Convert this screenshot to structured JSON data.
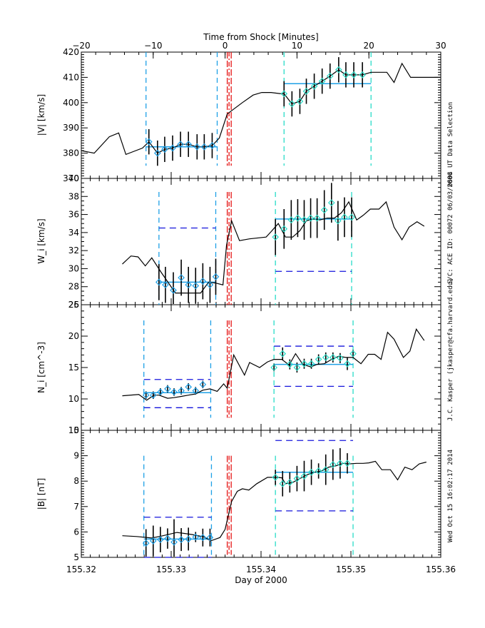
{
  "chart_data": {
    "type": "line",
    "top_axis": {
      "title": "Time from Shock [Minutes]",
      "range": [
        -20,
        30
      ],
      "ticks": [
        -20,
        -10,
        0,
        10,
        20,
        30
      ]
    },
    "bottom_axis": {
      "title": "Day of 2000",
      "range": [
        155.32,
        155.36
      ],
      "ticks": [
        "155.32",
        "155.33",
        "155.34",
        "155.35",
        "155.36"
      ]
    },
    "shock_time_min": 0,
    "side_notes": [
      "0604 UT Data Selection",
      "S/C: ACE ID: 00072 06/03/2000",
      "J.C. Kasper (jkasper@cfa.harvard.edu)",
      "Wed Oct 15 16:02:17 2014"
    ],
    "colors": {
      "line": "#000000",
      "upstream": "#1ea0e6",
      "downstream": "#28dcc8",
      "mean": "#1ea0e6",
      "limits": "#1414dc",
      "shock": "#e61414"
    },
    "panels": [
      {
        "name": "speed",
        "ylabel": "|V| [km/s]",
        "ylim": [
          370,
          420
        ],
        "yticks": [
          370,
          380,
          390,
          400,
          410,
          420
        ],
        "minor": 1,
        "series_min": [
          -20,
          -18.2,
          -16.1,
          -14.8,
          -13.8,
          -11.5,
          -10.6,
          -9.4,
          -8.4,
          -7.3,
          -6.2,
          -5.1,
          -3.9,
          -2.9,
          -1.8,
          -0.8,
          0.3,
          2.4,
          3.9,
          5.1,
          6.4,
          7.8,
          8.2,
          9.3,
          10.4,
          11.3,
          12.4,
          13.5,
          14.6,
          15.8,
          16.8,
          17.9,
          19.1,
          20.3,
          22.5,
          23.5,
          24.6,
          25.8,
          27,
          30
        ],
        "series_val": [
          381,
          380,
          386.5,
          388,
          379.5,
          382,
          384.5,
          380,
          381.5,
          382,
          383.5,
          383.5,
          382.5,
          382.5,
          383,
          386,
          395.5,
          400,
          403,
          404,
          404,
          403.5,
          403.5,
          399.5,
          400.5,
          404.5,
          406.5,
          408.5,
          410.5,
          413,
          411,
          411,
          411,
          412,
          412,
          408,
          415.5,
          410,
          410,
          410
        ],
        "upstream": {
          "window": [
            -11,
            -1.1
          ],
          "mean": 382.5,
          "points_min": [
            -10.6,
            -9.4,
            -8.4,
            -7.3,
            -6.2,
            -5.1,
            -3.9,
            -2.9,
            -1.8
          ],
          "points_val": [
            384.5,
            380,
            381.5,
            382,
            383.5,
            383.5,
            382.5,
            382.5,
            383
          ],
          "err": [
            5,
            5,
            5,
            5,
            5,
            5,
            5,
            5,
            5
          ]
        },
        "downstream": {
          "window": [
            8.2,
            20.3
          ],
          "mean": 407.5,
          "points_min": [
            8.2,
            9.3,
            10.4,
            11.3,
            12.4,
            13.5,
            14.6,
            15.8,
            16.8,
            17.9,
            19.1
          ],
          "points_val": [
            403.5,
            399.5,
            400.5,
            404.5,
            406.5,
            408.5,
            410.5,
            413,
            411,
            411,
            411
          ],
          "err": [
            5,
            5,
            5,
            5,
            5,
            5,
            5,
            5,
            5,
            5,
            5
          ]
        },
        "limits": null,
        "window_bottom": 375,
        "window_top": 420
      },
      {
        "name": "thermal-speed",
        "ylabel": "W_i [km/s]",
        "ylim": [
          26,
          40
        ],
        "yticks": [
          26,
          28,
          30,
          32,
          34,
          36,
          38,
          40
        ],
        "minor": 0.5,
        "series_min": [
          -14.3,
          -13.1,
          -12.1,
          -11.1,
          -10.2,
          -8.9,
          -6.9,
          -3.4,
          -2.3,
          -1.3,
          -0.3,
          0.2,
          0.9,
          2.0,
          3.4,
          5.7,
          6.4,
          7.4,
          8.4,
          9.4,
          10.4,
          11.3,
          12.3,
          13.2,
          14.2,
          15.2,
          16.2,
          17.2,
          18.3,
          19.2,
          20.2,
          21.4,
          22.4,
          23.5,
          24.6,
          25.6,
          26.7,
          27.7
        ],
        "series_val": [
          30.5,
          31.4,
          31.3,
          30.3,
          31.2,
          29.6,
          27.3,
          27.3,
          28.5,
          28.4,
          28.2,
          32.6,
          35.3,
          33.1,
          33.3,
          33.5,
          34.1,
          35.0,
          33.5,
          33.5,
          34.2,
          35.3,
          35.5,
          35.4,
          35.6,
          35.6,
          36.2,
          37.4,
          35.4,
          35.9,
          36.6,
          36.6,
          37.4,
          34.6,
          33.2,
          34.6,
          35.2,
          34.7
        ],
        "upstream": {
          "window": [
            -9.2,
            -1.3
          ],
          "mean": 28.5,
          "points_min": [
            -9.2,
            -8.3,
            -7.2,
            -6.1,
            -5.1,
            -4.1,
            -3.1,
            -2.1,
            -1.3
          ],
          "points_val": [
            28.5,
            28.2,
            27.6,
            29.0,
            28.2,
            28.1,
            28.6,
            28.2,
            29.1
          ],
          "err": [
            2.0,
            2.0,
            2.0,
            2.0,
            2.0,
            2.0,
            2.0,
            2.0,
            2.0
          ]
        },
        "downstream": {
          "window": [
            7.0,
            17.6
          ],
          "mean": 35.5,
          "points_min": [
            7.0,
            8.2,
            9.2,
            10.1,
            11.0,
            11.9,
            12.8,
            13.8,
            14.8,
            15.7,
            16.6,
            17.6
          ],
          "points_val": [
            33.5,
            34.4,
            35.4,
            35.6,
            35.4,
            35.6,
            35.6,
            36.5,
            37.3,
            35.3,
            35.7,
            35.7
          ],
          "err": [
            2.0,
            2.2,
            2.2,
            2.1,
            2.2,
            2.2,
            2.2,
            2.2,
            2.2,
            2.2,
            2.2,
            2.2
          ]
        },
        "limits": {
          "upstream": 34.5,
          "downstream": 29.7
        },
        "window_bottom": 26,
        "window_top": 38.5
      },
      {
        "name": "density",
        "ylabel": "N_i [cm^-3]",
        "ylim": [
          5,
          25
        ],
        "yticks": [
          5,
          10,
          15,
          20,
          25
        ],
        "minor": 1,
        "series_min": [
          -14.3,
          -12.0,
          -10.9,
          -9.9,
          -9.2,
          -8.0,
          -7.1,
          -6.1,
          -5.1,
          -4.1,
          -3.1,
          -2.1,
          -1.1,
          -0.2,
          0.3,
          1.2,
          2.7,
          3.4,
          4.8,
          5.9,
          6.8,
          7.9,
          8.9,
          9.8,
          10.8,
          11.9,
          12.8,
          13.8,
          14.8,
          15.8,
          16.8,
          17.8,
          18.9,
          19.9,
          20.8,
          21.7,
          22.6,
          23.5,
          24.8,
          25.7,
          26.6,
          27.7
        ],
        "series_val": [
          10.5,
          10.7,
          9.8,
          10.6,
          10.6,
          10.1,
          10.2,
          10.4,
          10.6,
          10.8,
          11.4,
          11.6,
          11.2,
          12.4,
          11.7,
          17.0,
          13.8,
          15.8,
          15.0,
          15.9,
          16.3,
          16.3,
          15.4,
          17.2,
          15.5,
          15.1,
          15.5,
          15.6,
          16.3,
          16.8,
          16.6,
          16.6,
          15.6,
          17.1,
          17.1,
          16.3,
          20.6,
          19.5,
          16.6,
          17.6,
          21.1,
          19.3
        ],
        "upstream": {
          "window": [
            -11.3,
            -2.0
          ],
          "mean": 11.0,
          "points_min": [
            -11.0,
            -10.0,
            -9.0,
            -8.0,
            -7.1,
            -6.1,
            -5.1,
            -4.1,
            -3.1
          ],
          "points_val": [
            10.6,
            10.6,
            11.1,
            11.6,
            11.1,
            11.3,
            11.9,
            11.3,
            12.3
          ],
          "err": [
            0.6,
            0.6,
            0.6,
            0.6,
            0.6,
            0.6,
            0.6,
            0.6,
            0.6
          ]
        },
        "downstream": {
          "window": [
            6.8,
            17.8
          ],
          "mean": 15.5,
          "points_min": [
            6.8,
            8.0,
            9.0,
            10.0,
            11.0,
            12.0,
            13.0,
            14.0,
            15.0,
            16.0,
            17.0,
            17.8
          ],
          "points_val": [
            15.0,
            17.2,
            15.5,
            15.0,
            15.6,
            15.6,
            16.3,
            16.6,
            16.6,
            16.5,
            15.6,
            17.2
          ],
          "err": [
            0.6,
            1.0,
            0.8,
            0.8,
            0.8,
            0.8,
            0.8,
            0.8,
            0.8,
            0.8,
            1.0,
            0.6
          ]
        },
        "limits": {
          "upstream_high": 13.1,
          "upstream_low": 8.6,
          "downstream_high": 18.4,
          "downstream_low": 12.0
        },
        "window_bottom": 7,
        "window_top": 22.5
      },
      {
        "name": "magnetic-field",
        "ylabel": "|B| [nT]",
        "ylim": [
          5,
          10
        ],
        "yticks": [
          5,
          6,
          7,
          8,
          9,
          10
        ],
        "minor": 0.1,
        "series_min": [
          -14.3,
          -12.3,
          -10.2,
          -8.8,
          -6.7,
          -4.6,
          -2.9,
          -2.0,
          -0.7,
          0.0,
          0.9,
          1.7,
          2.4,
          3.3,
          4.4,
          5.9,
          7.3,
          7.9,
          8.4,
          9.4,
          10.4,
          11.4,
          12.4,
          13.4,
          14.4,
          15.4,
          16.4,
          17.3,
          18.3,
          19.2,
          20.0,
          20.9,
          21.8,
          23.0,
          24.0,
          25.0,
          26.0,
          27.0,
          28.0
        ],
        "series_val": [
          5.85,
          5.82,
          5.76,
          5.84,
          5.98,
          5.9,
          5.8,
          5.65,
          5.78,
          6.1,
          7.2,
          7.6,
          7.7,
          7.65,
          7.9,
          8.15,
          8.15,
          8.13,
          7.9,
          7.95,
          8.1,
          8.25,
          8.35,
          8.4,
          8.55,
          8.6,
          8.7,
          8.68,
          8.7,
          8.7,
          8.72,
          8.78,
          8.45,
          8.45,
          8.05,
          8.55,
          8.45,
          8.68,
          8.75
        ],
        "upstream": {
          "window": [
            -11.3,
            -1.9
          ],
          "mean": 5.72,
          "points_min": [
            -11.0,
            -10.0,
            -9.0,
            -8.0,
            -7.1,
            -6.1,
            -5.1,
            -4.1,
            -3.1,
            -2.1
          ],
          "points_val": [
            5.56,
            5.65,
            5.7,
            5.74,
            5.6,
            5.7,
            5.72,
            5.8,
            5.78,
            5.78
          ],
          "err": [
            0.55,
            0.6,
            0.5,
            0.4,
            0.9,
            0.45,
            0.45,
            0.2,
            0.35,
            0.35
          ]
        },
        "downstream": {
          "window": [
            7.0,
            17.8
          ],
          "mean": 8.35,
          "points_min": [
            7.0,
            8.0,
            9.0,
            10.0,
            11.0,
            12.0,
            13.0,
            14.0,
            15.0,
            16.0,
            17.0
          ],
          "points_val": [
            8.15,
            7.9,
            7.95,
            8.1,
            8.2,
            8.35,
            8.4,
            8.45,
            8.65,
            8.7,
            8.7
          ],
          "err": [
            0.3,
            0.5,
            0.4,
            0.5,
            0.6,
            0.5,
            0.3,
            0.6,
            0.6,
            0.6,
            0.4
          ]
        },
        "limits": {
          "upstream_high": 6.58,
          "upstream_low": 5.0,
          "downstream_high": 9.6,
          "downstream_low": 6.83
        },
        "window_bottom": 5.1,
        "window_top": 9.0
      }
    ]
  }
}
